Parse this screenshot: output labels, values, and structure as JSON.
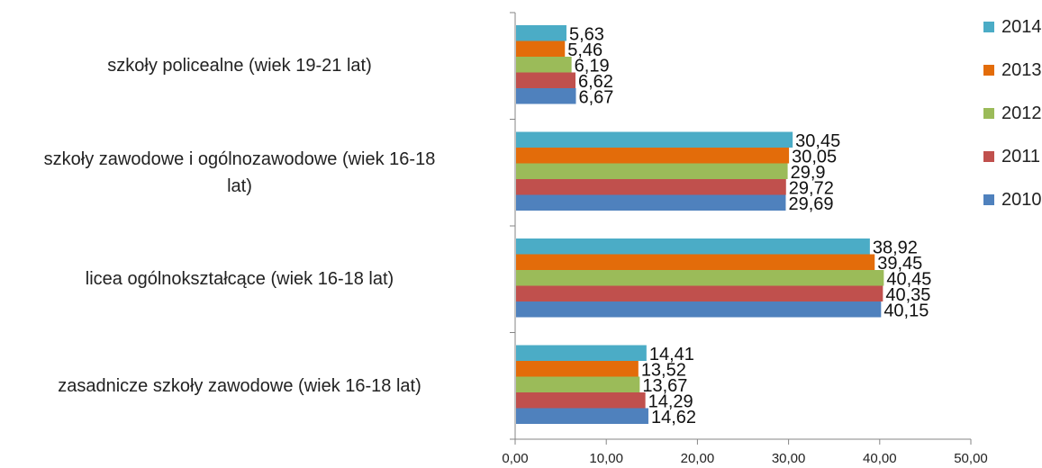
{
  "chart_data": {
    "type": "bar",
    "orientation": "horizontal",
    "categories": [
      "szkoły policealne (wiek 19-21 lat)",
      "szkoły zawodowe  i ogólnozawodowe (wiek 16-18 lat)",
      "licea ogólnokształcące (wiek 16-18 lat)",
      "zasadnicze szkoły zawodowe (wiek 16-18 lat)"
    ],
    "category_lines": [
      [
        "szkoły policealne (wiek 19-21 lat)"
      ],
      [
        "szkoły zawodowe  i ogólnozawodowe (wiek 16-18",
        "lat)"
      ],
      [
        "licea ogólnokształcące (wiek 16-18 lat)"
      ],
      [
        "zasadnicze szkoły zawodowe (wiek 16-18 lat)"
      ]
    ],
    "series": [
      {
        "name": "2014",
        "color": "#4BACC6",
        "values": [
          5.63,
          30.45,
          38.92,
          14.41
        ],
        "labels": [
          "5,63",
          "30,45",
          "38,92",
          "14,41"
        ]
      },
      {
        "name": "2013",
        "color": "#E36C0A",
        "values": [
          5.46,
          30.05,
          39.45,
          13.52
        ],
        "labels": [
          "5,46",
          "30,05",
          "39,45",
          "13,52"
        ]
      },
      {
        "name": "2012",
        "color": "#9BBB59",
        "values": [
          6.19,
          29.9,
          40.45,
          13.67
        ],
        "labels": [
          "6,19",
          "29,9",
          "40,45",
          "13,67"
        ]
      },
      {
        "name": "2011",
        "color": "#C0504D",
        "values": [
          6.62,
          29.72,
          40.35,
          14.29
        ],
        "labels": [
          "6,62",
          "29,72",
          "40,35",
          "14,29"
        ]
      },
      {
        "name": "2010",
        "color": "#4F81BD",
        "values": [
          6.67,
          29.69,
          40.15,
          14.62
        ],
        "labels": [
          "6,67",
          "29,69",
          "40,15",
          "14,62"
        ]
      }
    ],
    "xlim": [
      0,
      50
    ],
    "xticks": [
      0,
      10,
      20,
      30,
      40,
      50
    ],
    "xtick_labels": [
      "0,00",
      "10,00",
      "20,00",
      "30,00",
      "40,00",
      "50,00"
    ],
    "legend_position": "right",
    "grid": false
  }
}
